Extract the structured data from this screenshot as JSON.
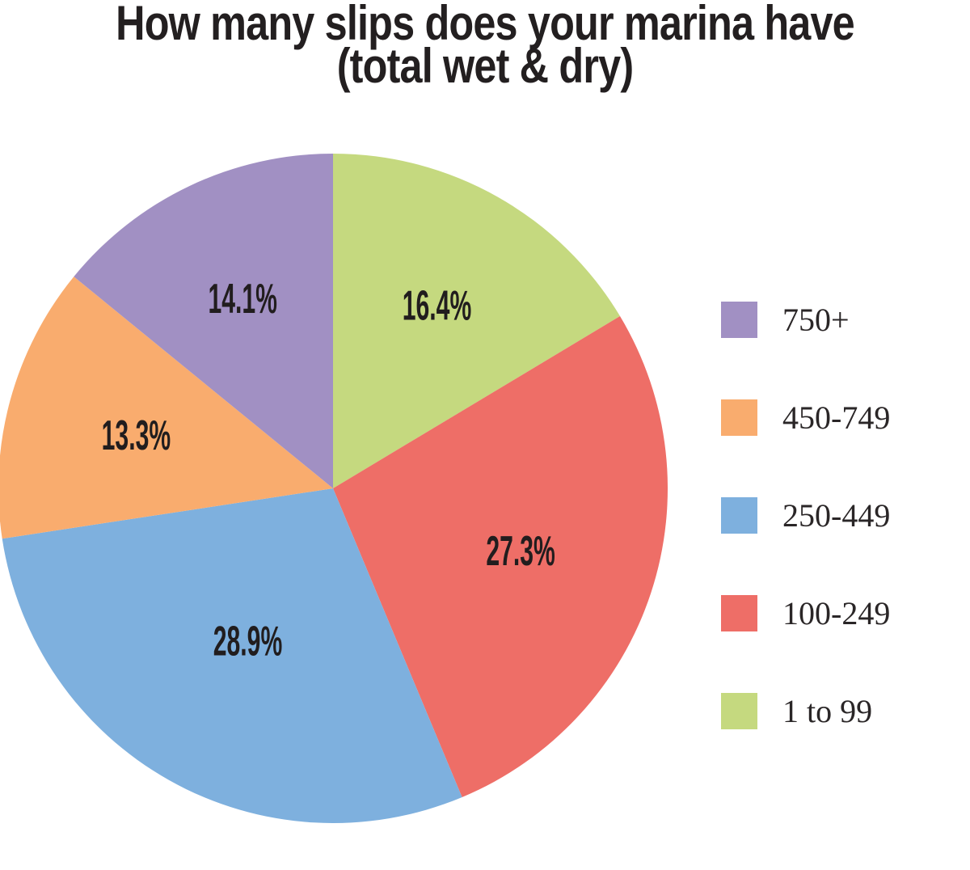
{
  "title": {
    "line1": "How many slips does your marina have",
    "line2": "(total wet & dry)"
  },
  "chart_data": {
    "type": "pie",
    "title": "How many slips does your marina have (total wet & dry)",
    "units": "percent",
    "start_angle_deg": 0,
    "direction": "clockwise",
    "slices": [
      {
        "label": "1 to 99",
        "value": 16.4,
        "display": "16.4%",
        "color": "#c5d97f"
      },
      {
        "label": "100-249",
        "value": 27.3,
        "display": "27.3%",
        "color": "#ee6e67"
      },
      {
        "label": "250-449",
        "value": 28.9,
        "display": "28.9%",
        "color": "#7eb0de"
      },
      {
        "label": "450-749",
        "value": 13.3,
        "display": "13.3%",
        "color": "#f9ac6e"
      },
      {
        "label": "750+",
        "value": 14.1,
        "display": "14.1%",
        "color": "#a190c3"
      }
    ],
    "legend": {
      "position": "right",
      "order": [
        "750+",
        "450-749",
        "250-449",
        "100-249",
        "1 to 99"
      ]
    },
    "label_text_color": "#211d1e"
  }
}
